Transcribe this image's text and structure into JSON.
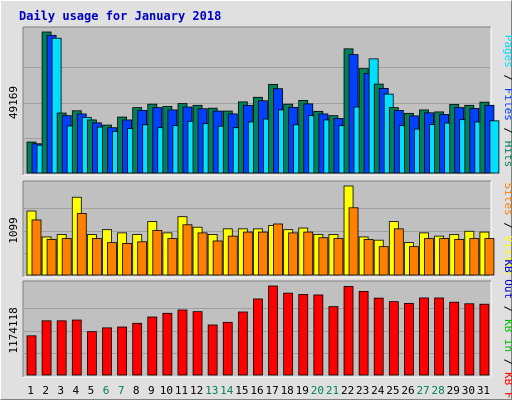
{
  "title": "Daily usage for January 2018",
  "colors": {
    "background": "#e0e0e0",
    "panel": "#c0c0c0",
    "title": "#0000c0",
    "hits": "#00805c",
    "files": "#0040ff",
    "pages": "#00e0ff",
    "visits": "#ffff00",
    "sites": "#ff8000",
    "kb_in": "#00c000",
    "kb_out": "#0000c0",
    "kb_f": "#ff0000",
    "weekend_label": "#00805c",
    "weekday_label": "#000000"
  },
  "chart_data": [
    {
      "type": "bar",
      "categories": [
        "1",
        "2",
        "3",
        "4",
        "5",
        "6",
        "7",
        "8",
        "9",
        "10",
        "11",
        "12",
        "13",
        "14",
        "15",
        "16",
        "17",
        "18",
        "19",
        "20",
        "21",
        "22",
        "23",
        "24",
        "25",
        "26",
        "27",
        "28",
        "29",
        "30",
        "31"
      ],
      "weekend_days": [
        "6",
        "7",
        "13",
        "14",
        "20",
        "21",
        "27",
        "28"
      ],
      "ylim": [
        0,
        49169
      ],
      "ytick_label": "49169",
      "legend": [
        {
          "name": "Hits",
          "key": "hits"
        },
        {
          "name": "Files",
          "key": "files"
        },
        {
          "name": "Pages",
          "key": "pages"
        }
      ],
      "series": [
        {
          "name": "Hits",
          "values": [
            10800,
            49169,
            20900,
            21700,
            18500,
            16700,
            19500,
            22800,
            24000,
            23200,
            24200,
            23600,
            22600,
            21600,
            24800,
            26400,
            30900,
            24000,
            25300,
            21500,
            20000,
            43300,
            36400,
            31000,
            22800,
            20800,
            22000,
            21300,
            23900,
            23600,
            24700
          ]
        },
        {
          "name": "Files",
          "values": [
            10200,
            48000,
            20000,
            20600,
            17500,
            15800,
            18500,
            21800,
            22800,
            22000,
            23000,
            22400,
            21600,
            20600,
            23600,
            25200,
            29400,
            22900,
            24100,
            20600,
            19000,
            41300,
            34700,
            29500,
            21800,
            19900,
            21000,
            20400,
            22800,
            22500,
            23600
          ]
        },
        {
          "name": "Pages",
          "values": [
            9700,
            47000,
            16400,
            19400,
            16000,
            14500,
            15500,
            16800,
            15800,
            16500,
            18000,
            17200,
            16300,
            15800,
            17800,
            18800,
            22000,
            16800,
            20000,
            18500,
            16500,
            23000,
            39800,
            27500,
            16500,
            15300,
            16900,
            17400,
            18600,
            17800,
            18200
          ]
        }
      ]
    },
    {
      "type": "bar",
      "categories": [
        "1",
        "2",
        "3",
        "4",
        "5",
        "6",
        "7",
        "8",
        "9",
        "10",
        "11",
        "12",
        "13",
        "14",
        "15",
        "16",
        "17",
        "18",
        "19",
        "20",
        "21",
        "22",
        "23",
        "24",
        "25",
        "26",
        "27",
        "28",
        "29",
        "30",
        "31"
      ],
      "ylim": [
        0,
        1099
      ],
      "ytick_label": "1099",
      "legend": [
        {
          "name": "Visits",
          "key": "visits"
        },
        {
          "name": "Sites",
          "key": "sites"
        }
      ],
      "series": [
        {
          "name": "Visits",
          "values": [
            790,
            470,
            500,
            960,
            500,
            560,
            520,
            500,
            660,
            520,
            720,
            590,
            500,
            570,
            570,
            570,
            610,
            560,
            580,
            500,
            500,
            1099,
            470,
            430,
            660,
            400,
            520,
            480,
            500,
            540,
            530
          ]
        },
        {
          "name": "Sites",
          "values": [
            680,
            440,
            450,
            760,
            450,
            400,
            390,
            410,
            550,
            450,
            620,
            520,
            420,
            480,
            530,
            530,
            630,
            520,
            530,
            460,
            450,
            830,
            440,
            350,
            570,
            350,
            450,
            450,
            440,
            450,
            450
          ]
        }
      ]
    },
    {
      "type": "bar",
      "categories": [
        "1",
        "2",
        "3",
        "4",
        "5",
        "6",
        "7",
        "8",
        "9",
        "10",
        "11",
        "12",
        "13",
        "14",
        "15",
        "16",
        "17",
        "18",
        "19",
        "20",
        "21",
        "22",
        "23",
        "24",
        "25",
        "26",
        "27",
        "28",
        "29",
        "30",
        "31"
      ],
      "ylim": [
        0,
        1174118
      ],
      "ytick_label": "1174118",
      "legend": [
        {
          "name": "KB F",
          "key": "kb_f"
        },
        {
          "name": "KB In",
          "key": "kb_in"
        },
        {
          "name": "KB Out",
          "key": "kb_out"
        }
      ],
      "series": [
        {
          "name": "KB F",
          "values": [
            517000,
            715000,
            715000,
            725000,
            572000,
            622000,
            633000,
            682000,
            765000,
            814000,
            858000,
            836000,
            660000,
            695000,
            831000,
            1003000,
            1174118,
            1080000,
            1062000,
            1056000,
            902000,
            1168000,
            1103000,
            1014000,
            968000,
            945000,
            1016000,
            1016000,
            960000,
            940000,
            934000
          ]
        }
      ]
    }
  ]
}
